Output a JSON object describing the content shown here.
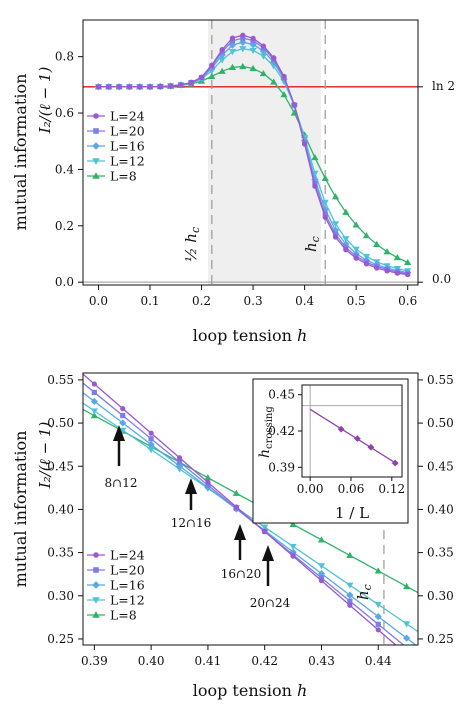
{
  "colors": {
    "L24": "#9b59d0",
    "L20": "#7b7ee6",
    "L16": "#5aa8e8",
    "L12": "#4fc4d6",
    "L8": "#2fb36a",
    "ln2_line": "#e0191c",
    "shade": "#efefef",
    "fit_line": "#8e44ad"
  },
  "chart_data": [
    {
      "type": "line",
      "xlabel_main": "loop tension",
      "xlabel_var": "h",
      "ylabel_main": "mutual information",
      "ylabel_formula": "I₂/(ℓ − 1)",
      "xlim": [
        -0.03,
        0.62
      ],
      "ylim": [
        -0.01,
        0.93
      ],
      "xticks": [
        "0.0",
        "0.1",
        "0.2",
        "0.3",
        "0.4",
        "0.5",
        "0.6"
      ],
      "yticks": [
        "0.0",
        "0.2",
        "0.4",
        "0.6",
        "0.8"
      ],
      "right_labels": [
        "ln 2",
        "0.0"
      ],
      "hc_half_label": "½ hc",
      "hc_label": "hc",
      "shaded_range": [
        0.22,
        0.44
      ],
      "ln2": 0.693,
      "legend": [
        "L=24",
        "L=20",
        "L=16",
        "L=12",
        "L=8"
      ],
      "series": [
        {
          "name": "L=24",
          "x": [
            0.0,
            0.02,
            0.04,
            0.06,
            0.08,
            0.1,
            0.12,
            0.14,
            0.16,
            0.18,
            0.2,
            0.22,
            0.24,
            0.26,
            0.28,
            0.3,
            0.32,
            0.34,
            0.36,
            0.38,
            0.4,
            0.42,
            0.44,
            0.46,
            0.48,
            0.5,
            0.52,
            0.54,
            0.56,
            0.58,
            0.6
          ],
          "y": [
            0.693,
            0.693,
            0.693,
            0.693,
            0.693,
            0.693,
            0.694,
            0.696,
            0.7,
            0.708,
            0.727,
            0.77,
            0.825,
            0.866,
            0.876,
            0.865,
            0.838,
            0.796,
            0.73,
            0.63,
            0.49,
            0.34,
            0.23,
            0.16,
            0.115,
            0.085,
            0.065,
            0.05,
            0.04,
            0.032,
            0.027
          ]
        },
        {
          "name": "L=20",
          "x": [
            0.0,
            0.02,
            0.04,
            0.06,
            0.08,
            0.1,
            0.12,
            0.14,
            0.16,
            0.18,
            0.2,
            0.22,
            0.24,
            0.26,
            0.28,
            0.3,
            0.32,
            0.34,
            0.36,
            0.38,
            0.4,
            0.42,
            0.44,
            0.46,
            0.48,
            0.5,
            0.52,
            0.54,
            0.56,
            0.58,
            0.6
          ],
          "y": [
            0.693,
            0.693,
            0.693,
            0.693,
            0.693,
            0.693,
            0.694,
            0.696,
            0.7,
            0.708,
            0.726,
            0.766,
            0.818,
            0.856,
            0.866,
            0.857,
            0.831,
            0.79,
            0.726,
            0.628,
            0.495,
            0.35,
            0.242,
            0.17,
            0.123,
            0.092,
            0.071,
            0.056,
            0.045,
            0.036,
            0.03
          ]
        },
        {
          "name": "L=16",
          "x": [
            0.0,
            0.02,
            0.04,
            0.06,
            0.08,
            0.1,
            0.12,
            0.14,
            0.16,
            0.18,
            0.2,
            0.22,
            0.24,
            0.26,
            0.28,
            0.3,
            0.32,
            0.34,
            0.36,
            0.38,
            0.4,
            0.42,
            0.44,
            0.46,
            0.48,
            0.5,
            0.52,
            0.54,
            0.56,
            0.58,
            0.6
          ],
          "y": [
            0.693,
            0.693,
            0.693,
            0.693,
            0.693,
            0.693,
            0.694,
            0.696,
            0.7,
            0.707,
            0.723,
            0.76,
            0.806,
            0.841,
            0.851,
            0.843,
            0.82,
            0.781,
            0.72,
            0.627,
            0.502,
            0.364,
            0.258,
            0.184,
            0.135,
            0.101,
            0.078,
            0.062,
            0.05,
            0.041,
            0.034
          ]
        },
        {
          "name": "L=12",
          "x": [
            0.0,
            0.02,
            0.04,
            0.06,
            0.08,
            0.1,
            0.12,
            0.14,
            0.16,
            0.18,
            0.2,
            0.22,
            0.24,
            0.26,
            0.28,
            0.3,
            0.32,
            0.34,
            0.36,
            0.38,
            0.4,
            0.42,
            0.44,
            0.46,
            0.48,
            0.5,
            0.52,
            0.54,
            0.56,
            0.58,
            0.6
          ],
          "y": [
            0.693,
            0.693,
            0.693,
            0.693,
            0.693,
            0.693,
            0.694,
            0.696,
            0.699,
            0.706,
            0.72,
            0.75,
            0.789,
            0.818,
            0.828,
            0.822,
            0.802,
            0.767,
            0.712,
            0.627,
            0.513,
            0.386,
            0.283,
            0.207,
            0.154,
            0.117,
            0.091,
            0.072,
            0.058,
            0.048,
            0.04
          ]
        },
        {
          "name": "L=8",
          "x": [
            0.0,
            0.02,
            0.04,
            0.06,
            0.08,
            0.1,
            0.12,
            0.14,
            0.16,
            0.18,
            0.2,
            0.22,
            0.24,
            0.26,
            0.28,
            0.3,
            0.32,
            0.34,
            0.36,
            0.38,
            0.4,
            0.42,
            0.44,
            0.46,
            0.48,
            0.5,
            0.52,
            0.54,
            0.56,
            0.58,
            0.6
          ],
          "y": [
            0.693,
            0.693,
            0.693,
            0.693,
            0.693,
            0.693,
            0.694,
            0.695,
            0.698,
            0.703,
            0.713,
            0.73,
            0.748,
            0.762,
            0.765,
            0.758,
            0.74,
            0.71,
            0.665,
            0.6,
            0.522,
            0.442,
            0.368,
            0.303,
            0.248,
            0.203,
            0.165,
            0.134,
            0.108,
            0.087,
            0.07
          ]
        }
      ]
    },
    {
      "type": "line",
      "xlabel_main": "loop tension",
      "xlabel_var": "h",
      "ylabel_main": "mutual information",
      "ylabel_formula": "I₂/(ℓ − 1)",
      "xlim": [
        0.388,
        0.447
      ],
      "ylim": [
        0.243,
        0.558
      ],
      "xticks": [
        "0.39",
        "0.40",
        "0.41",
        "0.42",
        "0.43",
        "0.44"
      ],
      "yticks": [
        "0.25",
        "0.30",
        "0.35",
        "0.40",
        "0.45",
        "0.50",
        "0.55"
      ],
      "right_ticks": [
        "0.25",
        "0.30",
        "0.35",
        "0.40",
        "0.45",
        "0.50",
        "0.55"
      ],
      "hc_label": "hc",
      "hc_value": 0.441,
      "annotations": [
        "8∩12",
        "12∩16",
        "16∩20",
        "20∩24"
      ],
      "legend": [
        "L=24",
        "L=20",
        "L=16",
        "L=12",
        "L=8"
      ],
      "series": [
        {
          "name": "L=24",
          "x": [
            0.386,
            0.448
          ],
          "y": [
            0.568,
            0.215
          ]
        },
        {
          "name": "L=20",
          "x": [
            0.386,
            0.448
          ],
          "y": [
            0.557,
            0.224
          ]
        },
        {
          "name": "L=16",
          "x": [
            0.386,
            0.448
          ],
          "y": [
            0.545,
            0.236
          ]
        },
        {
          "name": "L=12",
          "x": [
            0.386,
            0.448
          ],
          "y": [
            0.532,
            0.254
          ]
        },
        {
          "name": "L=8",
          "x": [
            0.386,
            0.448
          ],
          "y": [
            0.523,
            0.3
          ]
        }
      ],
      "inset": {
        "type": "scatter",
        "ylabel": "hcrossing",
        "xlabel": "1 / L",
        "xticks": [
          "0.00",
          "0.06",
          "0.12"
        ],
        "yticks": [
          "0.39",
          "0.42",
          "0.45"
        ],
        "xlim": [
          -0.012,
          0.135
        ],
        "ylim": [
          0.382,
          0.458
        ],
        "ref_y": 0.441,
        "points": [
          {
            "x": 0.0455,
            "y": 0.4215
          },
          {
            "x": 0.0694,
            "y": 0.4137
          },
          {
            "x": 0.0893,
            "y": 0.4066
          },
          {
            "x": 0.125,
            "y": 0.3935
          }
        ]
      }
    }
  ]
}
